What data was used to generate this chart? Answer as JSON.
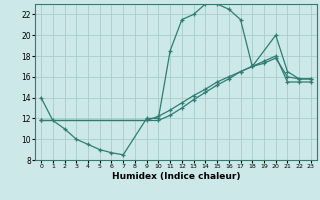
{
  "xlabel": "Humidex (Indice chaleur)",
  "bg_color": "#cce8e8",
  "line_color": "#2e7d72",
  "grid_color": "#aacccc",
  "xlim": [
    -0.5,
    23.5
  ],
  "ylim": [
    8,
    23
  ],
  "xticks": [
    0,
    1,
    2,
    3,
    4,
    5,
    6,
    7,
    8,
    9,
    10,
    11,
    12,
    13,
    14,
    15,
    16,
    17,
    18,
    19,
    20,
    21,
    22,
    23
  ],
  "yticks": [
    8,
    10,
    12,
    14,
    16,
    18,
    20,
    22
  ],
  "line1_x": [
    0,
    1,
    2,
    3,
    4,
    5,
    6,
    7,
    9,
    10,
    11,
    12,
    13,
    14,
    15,
    16,
    17,
    18,
    20,
    21,
    22,
    23
  ],
  "line1_y": [
    14,
    11.8,
    11,
    10,
    9.5,
    9,
    8.7,
    8.5,
    12,
    12,
    18.5,
    21.5,
    22,
    23,
    23,
    22.5,
    21.5,
    17,
    20,
    16.5,
    15.8,
    15.8
  ],
  "line2_x": [
    0,
    10,
    11,
    12,
    13,
    14,
    15,
    16,
    17,
    18,
    19,
    20,
    21,
    22,
    23
  ],
  "line2_y": [
    11.8,
    11.8,
    12.3,
    13,
    13.8,
    14.5,
    15.2,
    15.8,
    16.5,
    17,
    17.5,
    18,
    15.5,
    15.5,
    15.5
  ],
  "line3_x": [
    0,
    9,
    10,
    11,
    12,
    13,
    14,
    15,
    16,
    17,
    18,
    19,
    20,
    21,
    22,
    23
  ],
  "line3_y": [
    11.8,
    11.8,
    12.2,
    12.8,
    13.5,
    14.2,
    14.8,
    15.5,
    16,
    16.5,
    17,
    17.3,
    17.8,
    16,
    15.8,
    15.8
  ]
}
